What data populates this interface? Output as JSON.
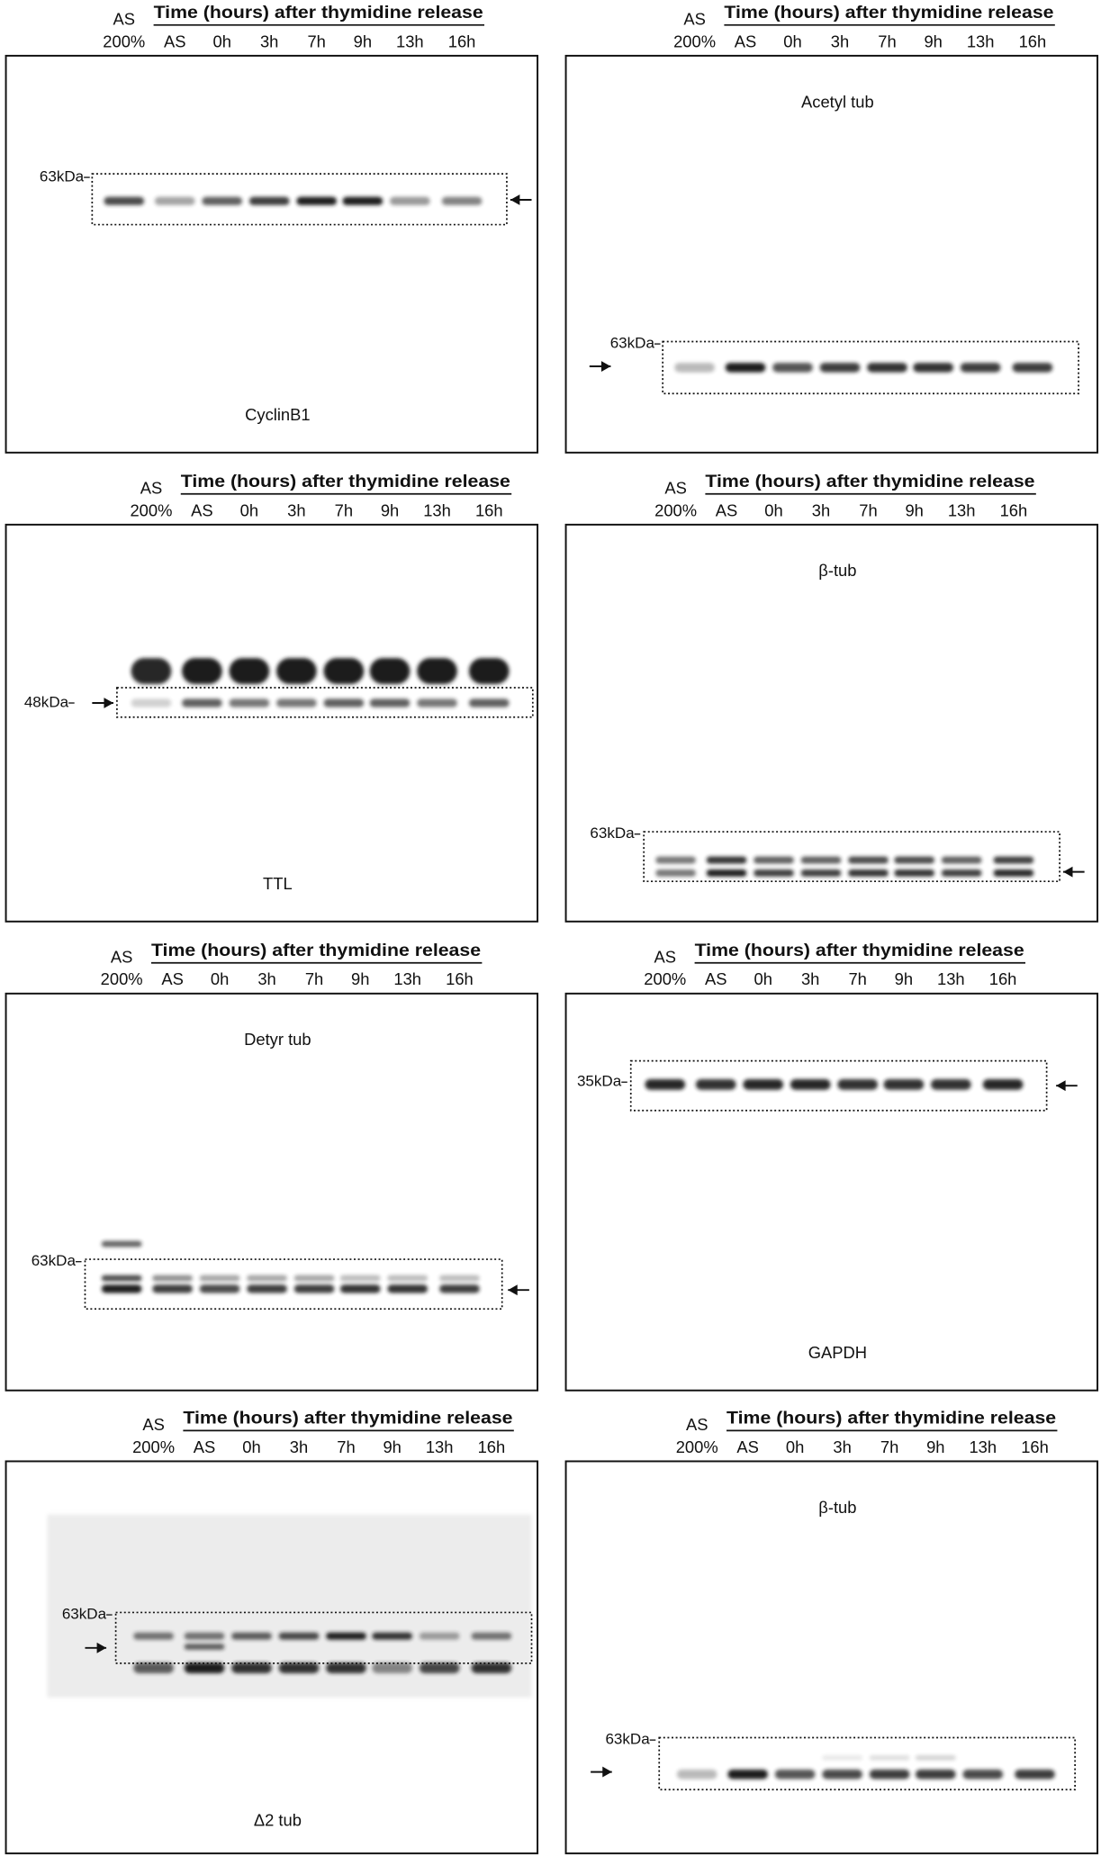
{
  "panels": [
    {
      "header": {
        "as": "AS",
        "title": "Time (hours) after thymidine release",
        "lanes": [
          "200%",
          "AS",
          "0h",
          "3h",
          "7h",
          "9h",
          "13h",
          "16h"
        ]
      },
      "antibody": "CyclinB1",
      "marker": "63kDa"
    },
    {
      "header": {
        "as": "AS",
        "title": "Time (hours) after thymidine release",
        "lanes": [
          "200%",
          "AS",
          "0h",
          "3h",
          "7h",
          "9h",
          "13h",
          "16h"
        ]
      },
      "antibody": "Acetyl tub",
      "marker": "63kDa"
    },
    {
      "header": {
        "as": "AS",
        "title": "Time (hours) after thymidine release",
        "lanes": [
          "200%",
          "AS",
          "0h",
          "3h",
          "7h",
          "9h",
          "13h",
          "16h"
        ]
      },
      "antibody": "TTL",
      "marker": "48kDa"
    },
    {
      "header": {
        "as": "AS",
        "title": "Time (hours) after thymidine release",
        "lanes": [
          "200%",
          "AS",
          "0h",
          "3h",
          "7h",
          "9h",
          "13h",
          "16h"
        ]
      },
      "antibody": "β-tub",
      "marker": "63kDa"
    },
    {
      "header": {
        "as": "AS",
        "title": "Time (hours) after thymidine release",
        "lanes": [
          "200%",
          "AS",
          "0h",
          "3h",
          "7h",
          "9h",
          "13h",
          "16h"
        ]
      },
      "antibody": "Detyr tub",
      "marker": "63kDa"
    },
    {
      "header": {
        "as": "AS",
        "title": "Time (hours) after thymidine release",
        "lanes": [
          "200%",
          "AS",
          "0h",
          "3h",
          "7h",
          "9h",
          "13h",
          "16h"
        ]
      },
      "antibody": "GAPDH",
      "marker": "35kDa"
    },
    {
      "header": {
        "as": "AS",
        "title": "Time (hours) after thymidine release",
        "lanes": [
          "200%",
          "AS",
          "0h",
          "3h",
          "7h",
          "9h",
          "13h",
          "16h"
        ]
      },
      "antibody": "Δ2 tub",
      "marker": "63kDa"
    },
    {
      "header": {
        "as": "AS",
        "title": "Time (hours) after thymidine release",
        "lanes": [
          "200%",
          "AS",
          "0h",
          "3h",
          "7h",
          "9h",
          "13h",
          "16h"
        ]
      },
      "antibody": "β-tub",
      "marker": "63kDa"
    }
  ]
}
